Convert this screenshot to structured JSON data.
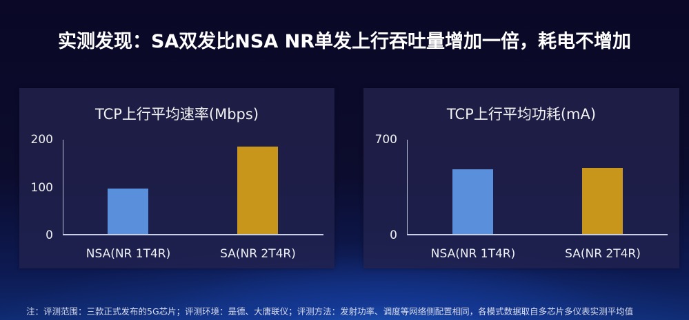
{
  "slide": {
    "title": "实测发现：SA双发比NSA NR单发上行吞吐量增加一倍，耗电不增加",
    "footnote": "注：评测范围：三款正式发布的5G芯片；评测环境：是德、大唐联仪；评测方法：发射功率、调度等网络侧配置相同，各模式数据取自多芯片多仪表实测平均值"
  },
  "colors": {
    "nsa_bar": "#5a8fdb",
    "sa_bar": "#c8961a",
    "panel": "#22224e",
    "background": "#0c0c2e"
  },
  "chart_data": [
    {
      "type": "bar",
      "title": "TCP上行平均速率(Mbps)",
      "categories": [
        "NSA(NR 1T4R)",
        "SA(NR 2T4R)"
      ],
      "values": [
        97,
        185
      ],
      "xlabel": "",
      "ylabel": "Mbps",
      "ylim": [
        0,
        200
      ],
      "yticks": [
        "0",
        "100",
        "200"
      ],
      "grid": false,
      "legend": null,
      "bar_colors": [
        "#5a8fdb",
        "#c8961a"
      ]
    },
    {
      "type": "bar",
      "title": "TCP上行平均功耗(mA)",
      "categories": [
        "NSA(NR 1T4R)",
        "SA(NR 2T4R)"
      ],
      "values": [
        480,
        493
      ],
      "xlabel": "",
      "ylabel": "mA",
      "ylim": [
        0,
        700
      ],
      "yticks": [
        "0",
        "700"
      ],
      "grid": false,
      "legend": null,
      "bar_colors": [
        "#5a8fdb",
        "#c8961a"
      ]
    }
  ]
}
